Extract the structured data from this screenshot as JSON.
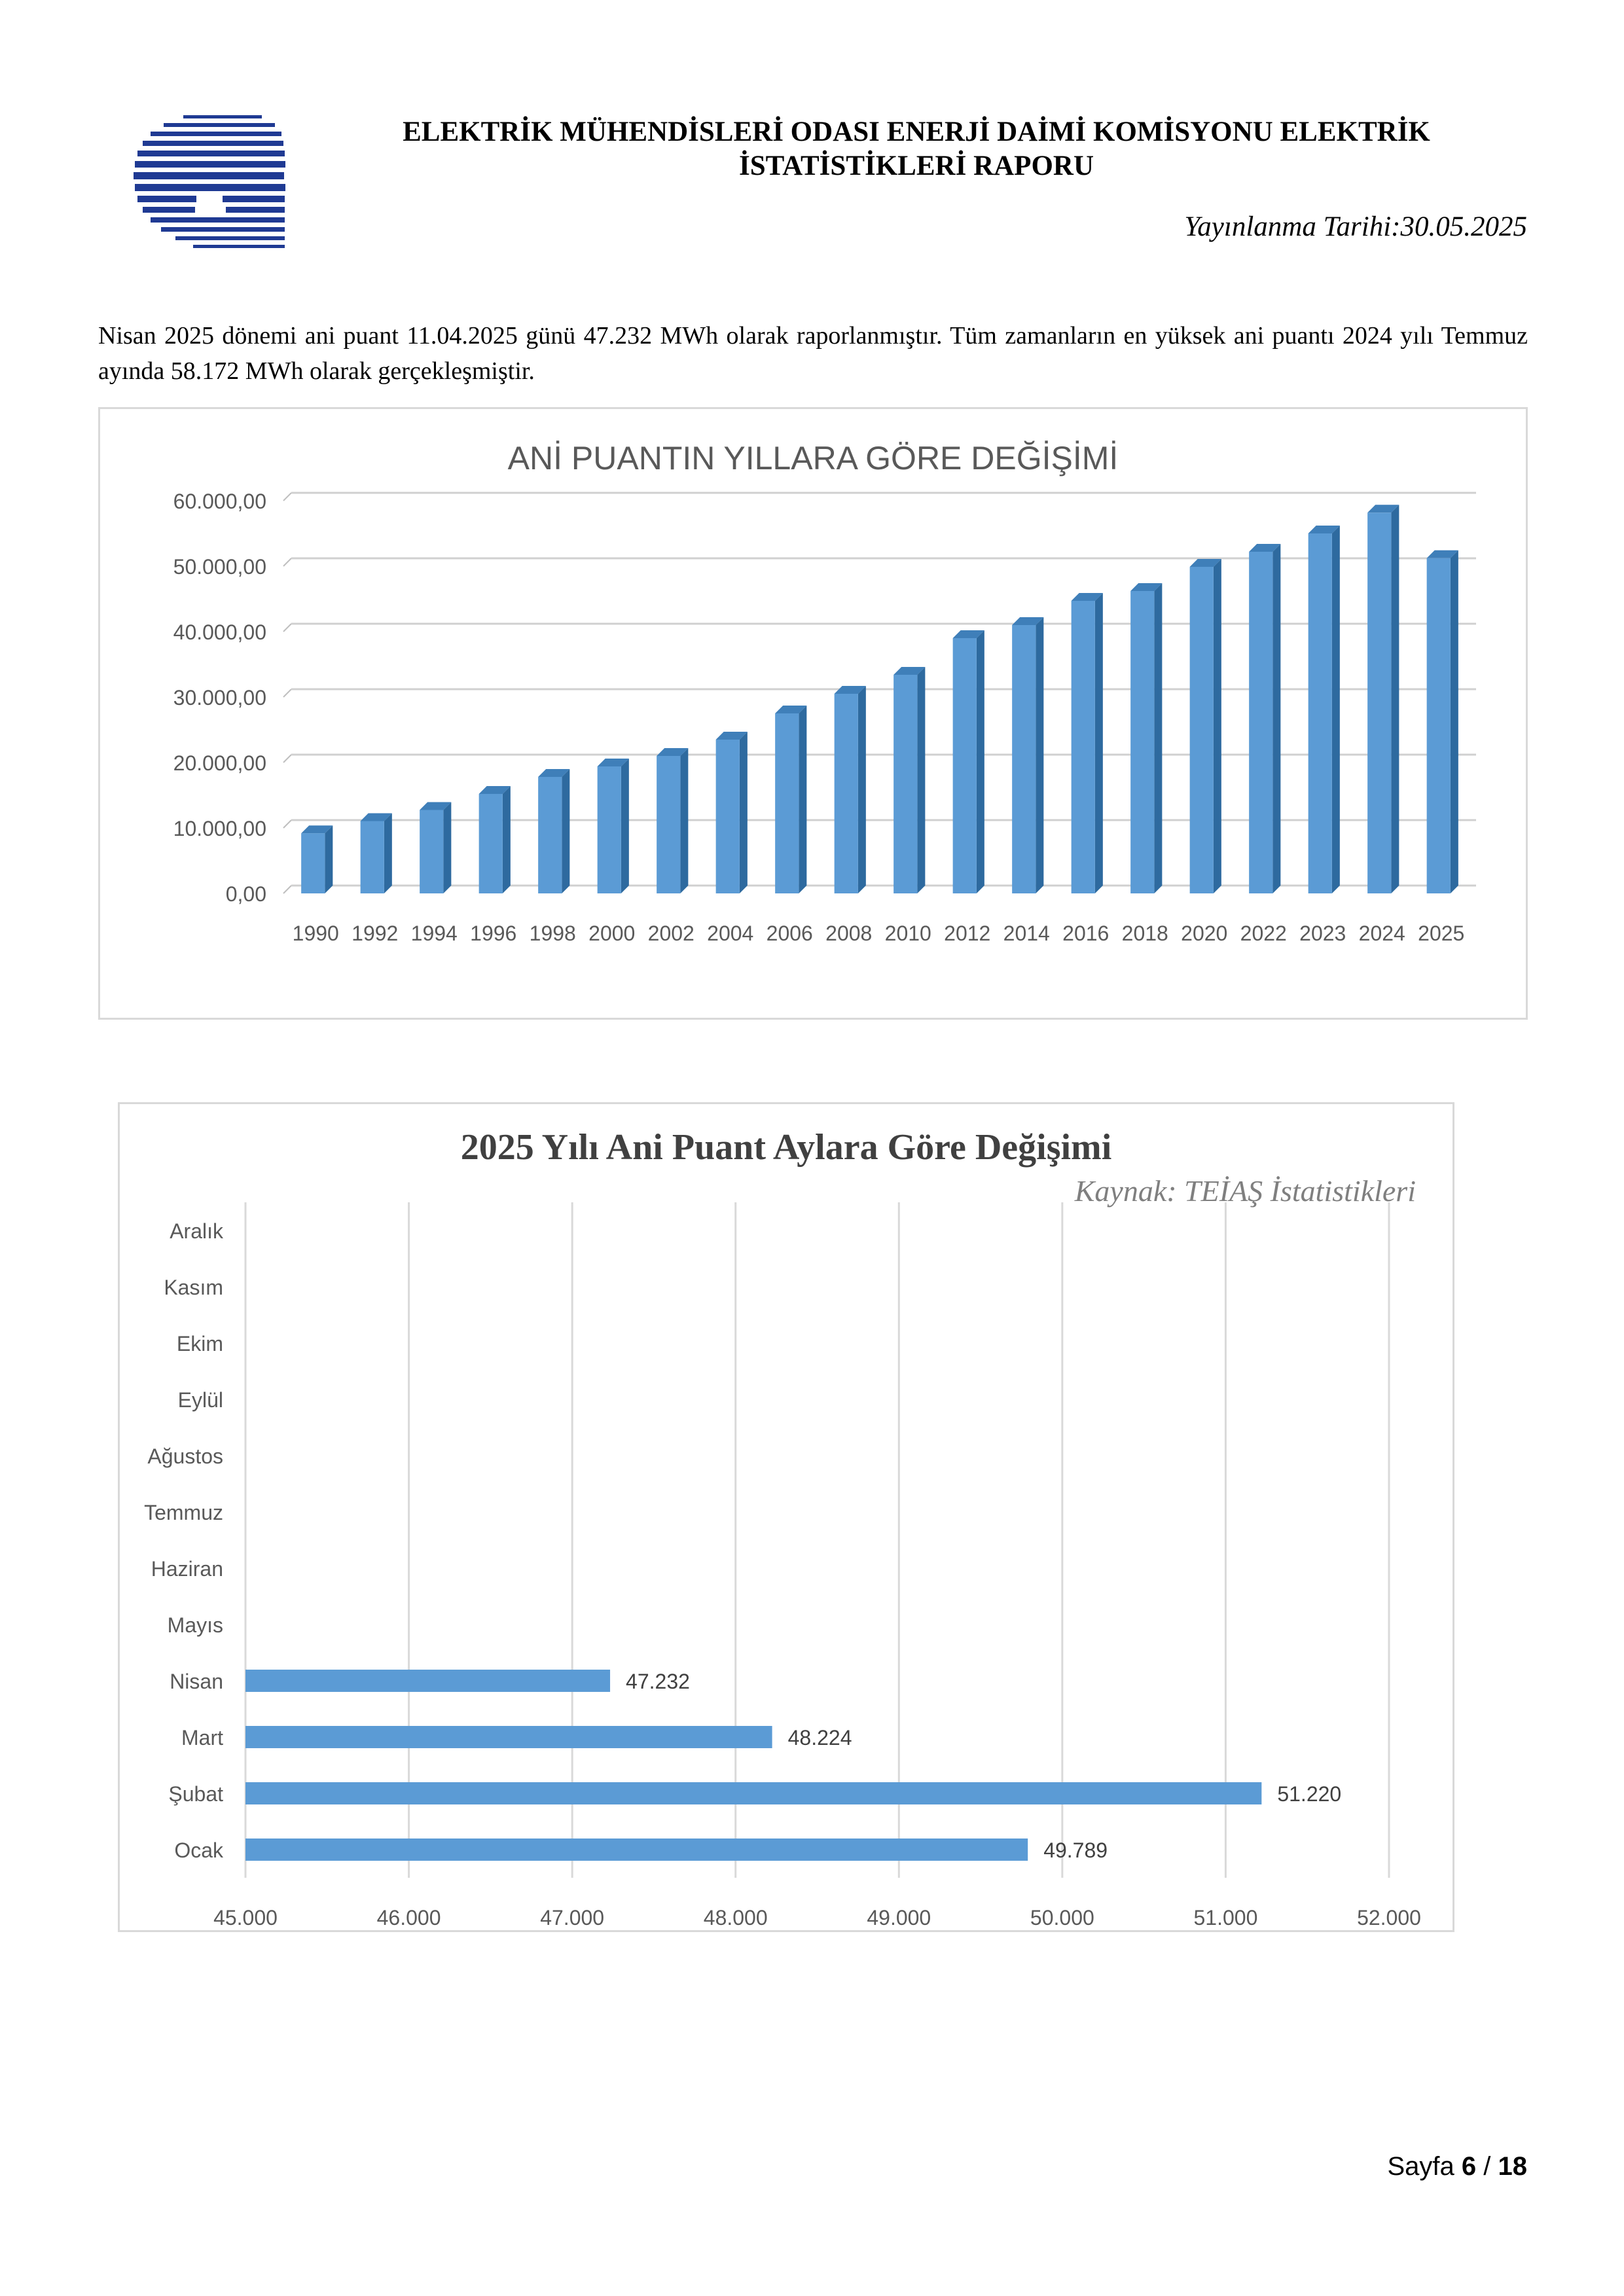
{
  "header": {
    "title": "ELEKTRİK MÜHENDİSLERİ ODASI ENERJİ DAİMİ KOMİSYONU ELEKTRİK İSTATİSTİKLERİ RAPORU",
    "date": "Yayınlanma Tarihi:30.05.2025"
  },
  "intro_text": "Nisan 2025 dönemi ani puant 11.04.2025 günü 47.232 MWh olarak raporlanmıştır. Tüm zamanların en yüksek ani puantı 2024 yılı Temmuz ayında 58.172 MWh olarak gerçekleşmiştir.",
  "chart_data": [
    {
      "type": "bar",
      "title": "ANİ PUANTIN YILLARA GÖRE DEĞİŞİMİ",
      "categories": [
        "1990",
        "1992",
        "1994",
        "1996",
        "1998",
        "2000",
        "2002",
        "2004",
        "2006",
        "2008",
        "2010",
        "2012",
        "2014",
        "2016",
        "2018",
        "2020",
        "2022",
        "2023",
        "2024",
        "2025"
      ],
      "values": [
        9180,
        11050,
        12750,
        15200,
        17800,
        19400,
        21000,
        23500,
        27500,
        30500,
        33400,
        39000,
        41000,
        44700,
        46200,
        49900,
        52200,
        55000,
        58172,
        51220
      ],
      "yticks": [
        "0,00",
        "10.000,00",
        "20.000,00",
        "30.000,00",
        "40.000,00",
        "50.000,00",
        "60.000,00"
      ],
      "ylim": [
        0,
        60000
      ],
      "grid": true,
      "color": "#5b9bd5"
    },
    {
      "type": "bar",
      "orientation": "horizontal",
      "title": "2025 Yılı Ani Puant Aylara Göre Değişimi",
      "subtitle": "Kaynak: TEİAŞ İstatistikleri",
      "categories": [
        "Aralık",
        "Kasım",
        "Ekim",
        "Eylül",
        "Ağustos",
        "Temmuz",
        "Haziran",
        "Mayıs",
        "Nisan",
        "Mart",
        "Şubat",
        "Ocak"
      ],
      "values": [
        null,
        null,
        null,
        null,
        null,
        null,
        null,
        null,
        47232,
        48224,
        51220,
        49789
      ],
      "data_labels": [
        "",
        "",
        "",
        "",
        "",
        "",
        "",
        "",
        "47.232",
        "48.224",
        "51.220",
        "49.789"
      ],
      "xticks": [
        "45.000",
        "46.000",
        "47.000",
        "48.000",
        "49.000",
        "50.000",
        "51.000",
        "52.000"
      ],
      "xlim": [
        45000,
        52000
      ],
      "grid": true,
      "color": "#5b9bd5"
    }
  ],
  "footer": {
    "page_label": "Sayfa",
    "page_current": "6",
    "page_sep": "/",
    "page_total": "18"
  }
}
